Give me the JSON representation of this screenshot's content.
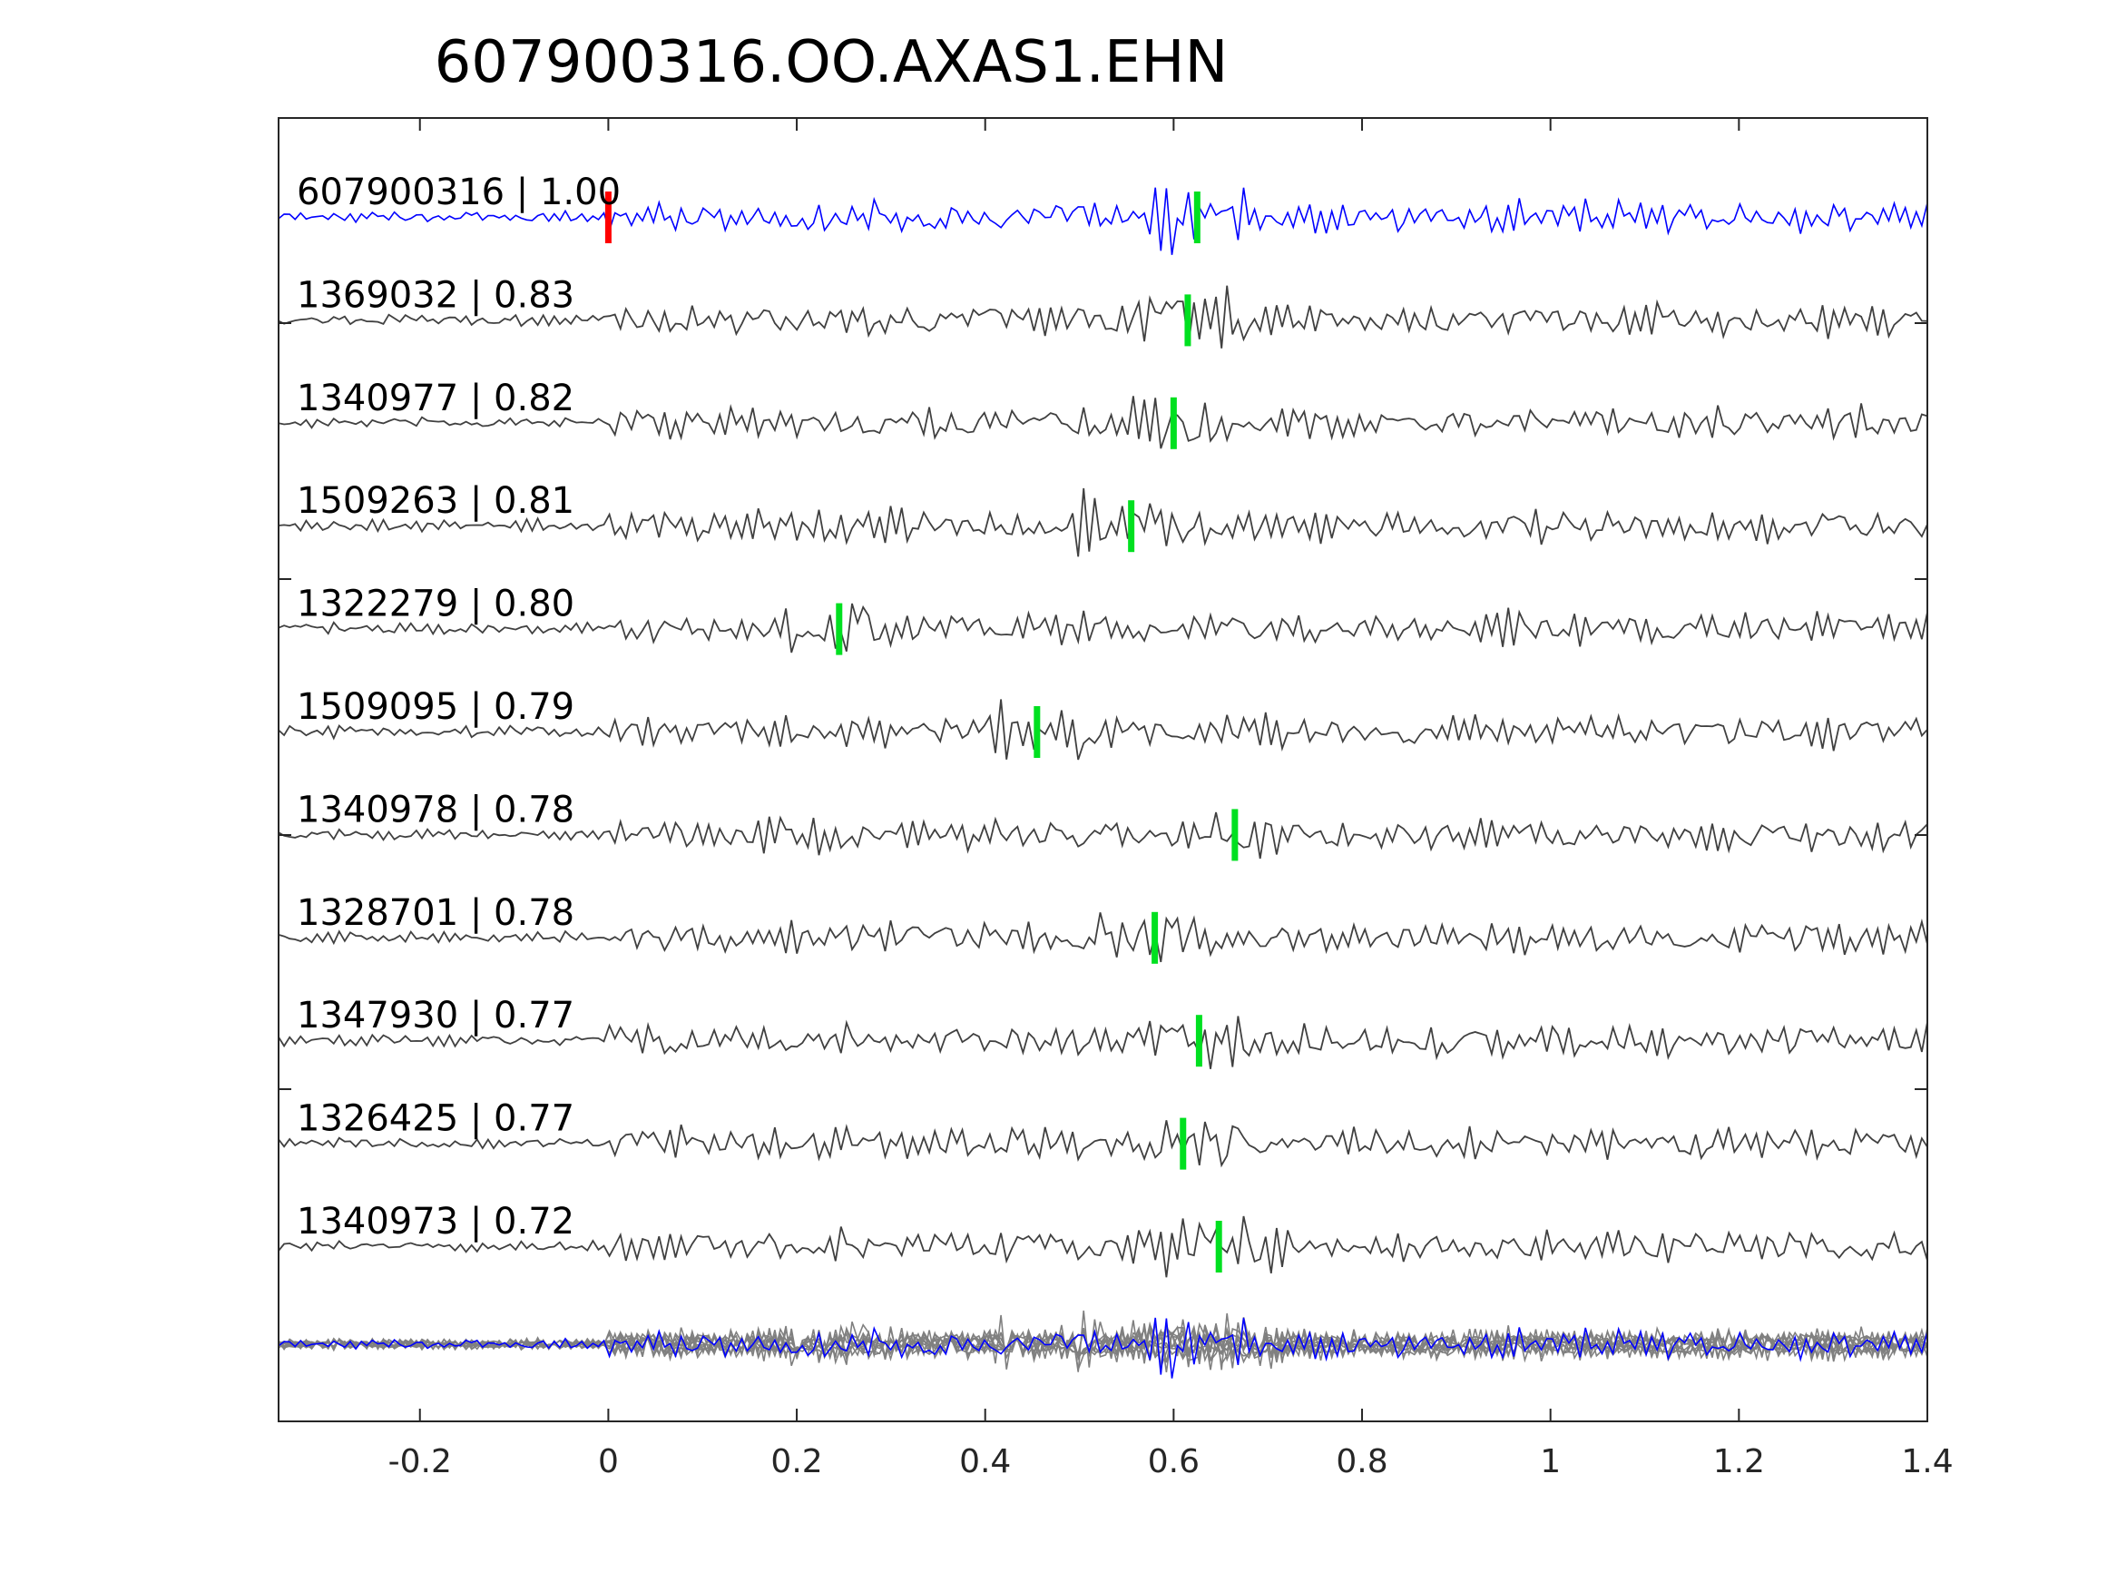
{
  "chart_data": {
    "type": "line",
    "title": "607900316.OO.AXAS1.EHN",
    "xlabel": "",
    "ylabel": "",
    "xlim": [
      -0.35,
      1.4
    ],
    "x_ticks": [
      "-0.2",
      "0",
      "0.2",
      "0.4",
      "0.6",
      "0.8",
      "1",
      "1.2",
      "1.4"
    ],
    "x_tick_values": [
      -0.2,
      0,
      0.2,
      0.4,
      0.6,
      0.8,
      1,
      1.2,
      1.4
    ],
    "grid": false,
    "traces": [
      {
        "label": "607900316 | 1.00",
        "id": "607900316",
        "cc": 1.0,
        "color": "#0000ff",
        "pick_red": 0.0,
        "pick_green": 0.625
      },
      {
        "label": "1369032 | 0.83",
        "id": "1369032",
        "cc": 0.83,
        "color": "#404040",
        "pick_green": 0.615
      },
      {
        "label": "1340977 | 0.82",
        "id": "1340977",
        "cc": 0.82,
        "color": "#404040",
        "pick_green": 0.6
      },
      {
        "label": "1509263 | 0.81",
        "id": "1509263",
        "cc": 0.81,
        "color": "#404040",
        "pick_green": 0.555
      },
      {
        "label": "1322279 | 0.80",
        "id": "1322279",
        "cc": 0.8,
        "color": "#404040",
        "pick_green": 0.245
      },
      {
        "label": "1509095 | 0.79",
        "id": "1509095",
        "cc": 0.79,
        "color": "#404040",
        "pick_green": 0.455
      },
      {
        "label": "1340978 | 0.78",
        "id": "1340978",
        "cc": 0.78,
        "color": "#404040",
        "pick_green": 0.665
      },
      {
        "label": "1328701 | 0.78",
        "id": "1328701",
        "cc": 0.78,
        "color": "#404040",
        "pick_green": 0.58
      },
      {
        "label": "1347930 | 0.77",
        "id": "1347930",
        "cc": 0.77,
        "color": "#404040",
        "pick_green": 0.627
      },
      {
        "label": "1326425 | 0.77",
        "id": "1326425",
        "cc": 0.77,
        "color": "#404040",
        "pick_green": 0.61
      },
      {
        "label": "1340973 | 0.72",
        "id": "1340973",
        "cc": 0.72,
        "color": "#404040",
        "pick_green": 0.648
      }
    ],
    "stack_colors": {
      "template": "#0000ff",
      "others": "#808080"
    },
    "pick_colors": {
      "red": "#ff0000",
      "green": "#00e020"
    }
  }
}
